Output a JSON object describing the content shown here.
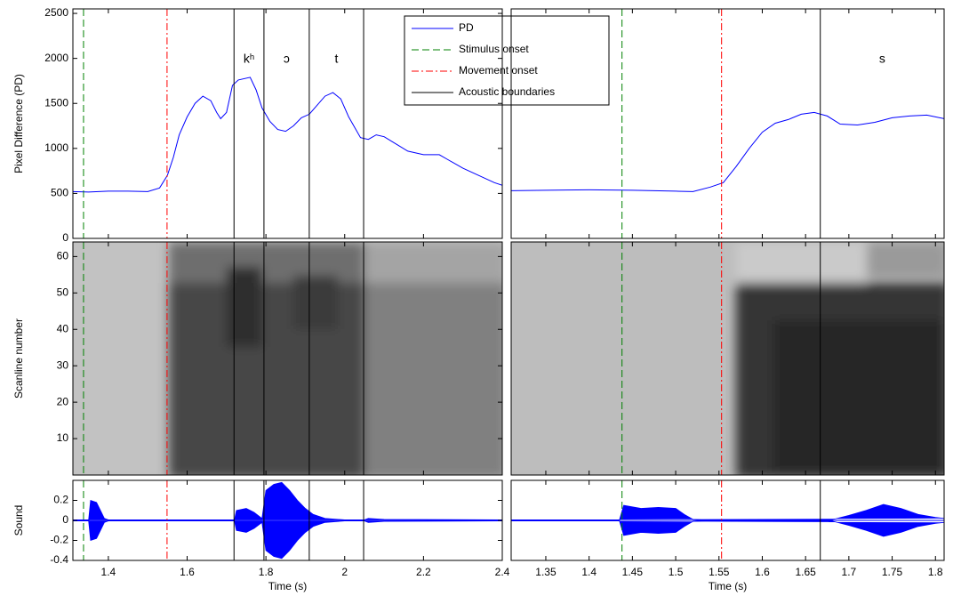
{
  "chart_data": [
    {
      "type": "line",
      "xlabel": "Time (s)",
      "xlim": [
        1.31,
        2.4
      ],
      "xticks": [
        1.4,
        1.6,
        1.8,
        2,
        2.2,
        2.4
      ],
      "pd": {
        "ylabel": "Pixel Difference (PD)",
        "ylim": [
          0,
          2550
        ],
        "yticks": [
          0,
          500,
          1000,
          1500,
          2000,
          2500
        ],
        "series": [
          {
            "name": "PD",
            "color": "#0000ff",
            "x": [
              1.31,
              1.35,
              1.4,
              1.45,
              1.5,
              1.53,
              1.55,
              1.565,
              1.58,
              1.6,
              1.62,
              1.64,
              1.66,
              1.675,
              1.685,
              1.7,
              1.715,
              1.73,
              1.76,
              1.775,
              1.79,
              1.81,
              1.83,
              1.85,
              1.87,
              1.89,
              1.91,
              1.93,
              1.95,
              1.97,
              1.99,
              2.01,
              2.04,
              2.06,
              2.08,
              2.1,
              2.13,
              2.16,
              2.2,
              2.24,
              2.26,
              2.3,
              2.34,
              2.38,
              2.4
            ],
            "values": [
              520,
              515,
              525,
              525,
              520,
              560,
              700,
              900,
              1150,
              1350,
              1500,
              1580,
              1530,
              1400,
              1330,
              1400,
              1700,
              1760,
              1790,
              1650,
              1450,
              1300,
              1210,
              1190,
              1250,
              1340,
              1380,
              1480,
              1580,
              1620,
              1550,
              1350,
              1120,
              1100,
              1150,
              1130,
              1050,
              970,
              930,
              930,
              880,
              780,
              700,
              620,
              590
            ]
          }
        ]
      },
      "scan": {
        "ylabel": "Scanline number",
        "ylim": [
          0,
          64
        ],
        "yticks": [
          10,
          20,
          30,
          40,
          50,
          60
        ]
      },
      "sound": {
        "ylabel": "Sound",
        "ylim": [
          -0.4,
          0.4
        ],
        "yticks": [
          -0.4,
          -0.2,
          0,
          0.2
        ],
        "color": "#0000ff",
        "x": [
          1.31,
          1.35,
          1.355,
          1.37,
          1.38,
          1.39,
          1.4,
          1.72,
          1.725,
          1.75,
          1.77,
          1.79,
          1.8,
          1.82,
          1.84,
          1.86,
          1.88,
          1.9,
          1.92,
          1.95,
          2.0,
          2.05,
          2.06,
          2.1,
          2.4
        ],
        "values": [
          0.005,
          0.005,
          0.2,
          0.18,
          0.1,
          0.02,
          0.005,
          0.005,
          0.1,
          0.12,
          0.08,
          0.02,
          0.3,
          0.36,
          0.38,
          0.3,
          0.2,
          0.12,
          0.06,
          0.02,
          0.005,
          0.005,
          0.02,
          0.01,
          0.005
        ]
      },
      "markers": [
        {
          "name": "Stimulus onset",
          "color": "#008000",
          "x": [
            1.337
          ]
        },
        {
          "name": "Movement onset",
          "color": "#ff0000",
          "x": [
            1.549
          ]
        },
        {
          "name": "Acoustic boundaries",
          "color": "#000000",
          "x": [
            1.719,
            1.795,
            1.91,
            2.048
          ]
        }
      ],
      "segments": [
        "kʰ",
        "ɔ",
        "t"
      ]
    },
    {
      "type": "line",
      "xlabel": "Time (s)",
      "xlim": [
        1.31,
        1.81
      ],
      "xticks": [
        1.35,
        1.4,
        1.45,
        1.5,
        1.55,
        1.6,
        1.65,
        1.7,
        1.75,
        1.8
      ],
      "pd": {
        "ylim": [
          0,
          2550
        ],
        "series": [
          {
            "color": "#0000ff",
            "x": [
              1.31,
              1.35,
              1.4,
              1.45,
              1.5,
              1.52,
              1.54,
              1.555,
              1.57,
              1.585,
              1.6,
              1.615,
              1.63,
              1.645,
              1.66,
              1.675,
              1.69,
              1.71,
              1.73,
              1.75,
              1.77,
              1.79,
              1.81
            ],
            "values": [
              530,
              535,
              540,
              535,
              525,
              520,
              570,
              620,
              800,
              1000,
              1180,
              1280,
              1320,
              1380,
              1400,
              1360,
              1270,
              1260,
              1290,
              1340,
              1360,
              1370,
              1330
            ]
          }
        ]
      },
      "scan": {
        "ylim": [
          0,
          64
        ]
      },
      "sound": {
        "ylim": [
          -0.4,
          0.4
        ],
        "color": "#0000ff",
        "x": [
          1.31,
          1.435,
          1.44,
          1.46,
          1.48,
          1.5,
          1.51,
          1.52,
          1.53,
          1.68,
          1.7,
          1.72,
          1.74,
          1.76,
          1.78,
          1.8,
          1.81
        ],
        "values": [
          0.005,
          0.005,
          0.15,
          0.12,
          0.13,
          0.12,
          0.06,
          0.01,
          0.005,
          0.005,
          0.05,
          0.1,
          0.16,
          0.12,
          0.06,
          0.03,
          0.02
        ]
      },
      "markers": [
        {
          "color": "#008000",
          "x": [
            1.438
          ]
        },
        {
          "color": "#ff0000",
          "x": [
            1.553
          ]
        },
        {
          "color": "#000000",
          "x": [
            1.667
          ]
        }
      ],
      "segments": [
        "s"
      ]
    }
  ]
}
